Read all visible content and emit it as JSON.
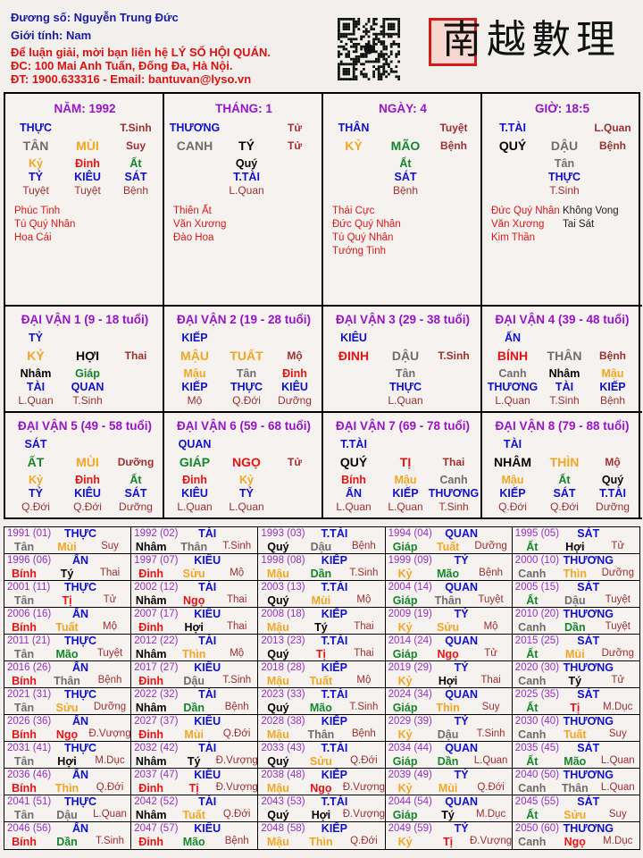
{
  "header": {
    "owner": "Đương số: Nguyễn Trung Đức",
    "gender": "Giới tính:   Nam",
    "contact_line": "Để luận giải, mời bạn liên hệ LÝ SỐ HỘI QUÁN.",
    "address": "ĐC: 100 Mai Anh Tuấn, Đống Đa, Hà Nội.",
    "phone_email": "ĐT: 1900.633316 - Email: bantuvan@lyso.vn",
    "logo_text": "南越數理",
    "qr_icon": "qr-code-icon"
  },
  "colors": {
    "title": "#9a14c8",
    "god": "#1010d0",
    "phase": "#a03030",
    "star": "#e01818",
    "elements": {
      "canh": "#6e6e6e",
      "tân": "#6e6e6e",
      "thân": "#6e6e6e",
      "dậu": "#6e6e6e",
      "giáp": "#15862a",
      "ất": "#15862a",
      "dần": "#15862a",
      "mão": "#15862a",
      "nhâm": "#000000",
      "quý": "#000000",
      "tý": "#000000",
      "hợi": "#000000",
      "bính": "#ee1111",
      "đinh": "#ee1111",
      "tị": "#ee1111",
      "ngọ": "#ee1111",
      "mậu": "#f5a623",
      "kỷ": "#f5a623",
      "thìn": "#f5a623",
      "tuất": "#f5a623",
      "sửu": "#f5a623",
      "mùi": "#f5a623"
    }
  },
  "pillars": [
    {
      "title": "NĂM: 1992",
      "god": "THỰC",
      "top_phase": "T.Sinh",
      "stem": "TÂN",
      "branch": "MÙI",
      "phase": "Suy",
      "hidden": [
        {
          "s": "Kỷ",
          "g": "TỶ",
          "p": "Tuyệt"
        },
        {
          "s": "Đinh",
          "g": "KIÊU",
          "p": "Tuyệt"
        },
        {
          "s": "Ất",
          "g": "SÁT",
          "p": "Bệnh"
        }
      ],
      "stars": [
        "Phúc Tinh",
        "Tú Quý Nhân",
        "Hoa Cái"
      ],
      "stars2": []
    },
    {
      "title": "THÁNG: 1",
      "god": "THƯƠNG",
      "top_phase": "Tử",
      "stem": "CANH",
      "branch": "TÝ",
      "phase": "Tử",
      "hidden": [
        {
          "s": "Quý",
          "g": "T.TÀI",
          "p": "L.Quan"
        }
      ],
      "stars": [
        "Thiên Ất",
        "Văn Xương",
        "Đào Hoa"
      ],
      "stars2": []
    },
    {
      "title": "NGÀY: 4",
      "god": "THÂN",
      "top_phase": "Tuyệt",
      "stem": "KỶ",
      "branch": "MÃO",
      "phase": "Bệnh",
      "hidden": [
        {
          "s": "Ất",
          "g": "SÁT",
          "p": "Bệnh"
        }
      ],
      "stars": [
        "Thái Cực",
        "Đức Quý Nhân",
        "Tú Quý Nhân",
        "Tướng Tinh"
      ],
      "stars2": []
    },
    {
      "title": "GIỜ: 18:5",
      "god": "T.TÀI",
      "top_phase": "L.Quan",
      "stem": "QUÝ",
      "branch": "DẬU",
      "phase": "Bệnh",
      "hidden": [
        {
          "s": "Tân",
          "g": "THỰC",
          "p": "T.Sinh"
        }
      ],
      "stars": [
        "Đức Quý Nhân",
        "Văn Xương",
        "Kim Thần"
      ],
      "stars2": [
        "Không Vong",
        "Tai Sát"
      ]
    }
  ],
  "dai_van": [
    {
      "title": "ĐẠI VẬN 1 (9 - 18 tuổi)",
      "god": "TỶ",
      "stem": "KỶ",
      "branch": "HỢI",
      "phase": "Thai",
      "hidden": [
        {
          "s": "Nhâm",
          "g": "TÀI",
          "p": "L.Quan"
        },
        {
          "s": "Giáp",
          "g": "QUAN",
          "p": "T.Sinh"
        }
      ]
    },
    {
      "title": "ĐẠI VẬN 2 (19 - 28 tuổi)",
      "god": "KIẾP",
      "stem": "MẬU",
      "branch": "TUẤT",
      "phase": "Mộ",
      "hidden": [
        {
          "s": "Mậu",
          "g": "KIẾP",
          "p": "Mộ"
        },
        {
          "s": "Tân",
          "g": "THỰC",
          "p": "Q.Đới"
        },
        {
          "s": "Đinh",
          "g": "KIÊU",
          "p": "Dưỡng"
        }
      ]
    },
    {
      "title": "ĐẠI VẬN 3 (29 - 38 tuổi)",
      "god": "KIÊU",
      "stem": "ĐINH",
      "branch": "DẬU",
      "phase": "T.Sinh",
      "hidden": [
        {
          "s": "Tân",
          "g": "THỰC",
          "p": "L.Quan"
        }
      ]
    },
    {
      "title": "ĐẠI VẬN 4 (39 - 48 tuổi)",
      "god": "ẤN",
      "stem": "BÍNH",
      "branch": "THÂN",
      "phase": "Bệnh",
      "hidden": [
        {
          "s": "Canh",
          "g": "THƯƠNG",
          "p": "L.Quan"
        },
        {
          "s": "Nhâm",
          "g": "TÀI",
          "p": "T.Sinh"
        },
        {
          "s": "Mậu",
          "g": "KIẾP",
          "p": "Bệnh"
        }
      ]
    },
    {
      "title": "ĐẠI VẬN 5 (49 - 58 tuổi)",
      "god": "SÁT",
      "stem": "ẤT",
      "branch": "MÙI",
      "phase": "Dưỡng",
      "hidden": [
        {
          "s": "Kỷ",
          "g": "TỶ",
          "p": "Q.Đới"
        },
        {
          "s": "Đinh",
          "g": "KIÊU",
          "p": "Q.Đới"
        },
        {
          "s": "Ất",
          "g": "SÁT",
          "p": "Dưỡng"
        }
      ]
    },
    {
      "title": "ĐẠI VẬN 6 (59 - 68 tuổi)",
      "god": "QUAN",
      "stem": "GIÁP",
      "branch": "NGỌ",
      "phase": "Tử",
      "hidden": [
        {
          "s": "Đinh",
          "g": "KIÊU",
          "p": "L.Quan"
        },
        {
          "s": "Kỷ",
          "g": "TỶ",
          "p": "L.Quan"
        }
      ]
    },
    {
      "title": "ĐẠI VẬN 7 (69 - 78 tuổi)",
      "god": "T.TÀI",
      "stem": "QUÝ",
      "branch": "TỊ",
      "phase": "Thai",
      "hidden": [
        {
          "s": "Bính",
          "g": "ẤN",
          "p": "L.Quan"
        },
        {
          "s": "Mậu",
          "g": "KIẾP",
          "p": "L.Quan"
        },
        {
          "s": "Canh",
          "g": "THƯƠNG",
          "p": "T.Sinh"
        }
      ]
    },
    {
      "title": "ĐẠI VẬN 8 (79 - 88 tuổi)",
      "god": "TÀI",
      "stem": "NHÂM",
      "branch": "THÌN",
      "phase": "Mộ",
      "hidden": [
        {
          "s": "Mậu",
          "g": "KIẾP",
          "p": "Q.Đới"
        },
        {
          "s": "Ất",
          "g": "SÁT",
          "p": "Q.Đới"
        },
        {
          "s": "Quý",
          "g": "T.TÀI",
          "p": "Dưỡng"
        }
      ]
    }
  ],
  "years": [
    [
      "1991 (01)",
      "THỰC",
      "Tân",
      "Mùi",
      "Suy"
    ],
    [
      "1992 (02)",
      "TÀI",
      "Nhâm",
      "Thân",
      "T.Sinh"
    ],
    [
      "1993 (03)",
      "T.TÀI",
      "Quý",
      "Dậu",
      "Bệnh"
    ],
    [
      "1994 (04)",
      "QUAN",
      "Giáp",
      "Tuất",
      "Dưỡng"
    ],
    [
      "1995 (05)",
      "SÁT",
      "Ất",
      "Hợi",
      "Tử"
    ],
    [
      "1996 (06)",
      "ẤN",
      "Bính",
      "Tý",
      "Thai"
    ],
    [
      "1997 (07)",
      "KIÊU",
      "Đinh",
      "Sửu",
      "Mộ"
    ],
    [
      "1998 (08)",
      "KIẾP",
      "Mậu",
      "Dần",
      "T.Sinh"
    ],
    [
      "1999 (09)",
      "TỶ",
      "Kỷ",
      "Mão",
      "Bệnh"
    ],
    [
      "2000 (10)",
      "THƯƠNG",
      "Canh",
      "Thìn",
      "Dưỡng"
    ],
    [
      "2001 (11)",
      "THỰC",
      "Tân",
      "Tị",
      "Tử"
    ],
    [
      "2002 (12)",
      "TÀI",
      "Nhâm",
      "Ngọ",
      "Thai"
    ],
    [
      "2003 (13)",
      "T.TÀI",
      "Quý",
      "Mùi",
      "Mộ"
    ],
    [
      "2004 (14)",
      "QUAN",
      "Giáp",
      "Thân",
      "Tuyệt"
    ],
    [
      "2005 (15)",
      "SÁT",
      "Ất",
      "Dậu",
      "Tuyệt"
    ],
    [
      "2006 (16)",
      "ẤN",
      "Bính",
      "Tuất",
      "Mộ"
    ],
    [
      "2007 (17)",
      "KIÊU",
      "Đinh",
      "Hợi",
      "Thai"
    ],
    [
      "2008 (18)",
      "KIẾP",
      "Mậu",
      "Tý",
      "Thai"
    ],
    [
      "2009 (19)",
      "TỶ",
      "Kỷ",
      "Sửu",
      "Mộ"
    ],
    [
      "2010 (20)",
      "THƯƠNG",
      "Canh",
      "Dần",
      "Tuyệt"
    ],
    [
      "2011 (21)",
      "THỰC",
      "Tân",
      "Mão",
      "Tuyệt"
    ],
    [
      "2012 (22)",
      "TÀI",
      "Nhâm",
      "Thìn",
      "Mộ"
    ],
    [
      "2013 (23)",
      "T.TÀI",
      "Quý",
      "Tị",
      "Thai"
    ],
    [
      "2014 (24)",
      "QUAN",
      "Giáp",
      "Ngọ",
      "Tử"
    ],
    [
      "2015 (25)",
      "SÁT",
      "Ất",
      "Mùi",
      "Dưỡng"
    ],
    [
      "2016 (26)",
      "ẤN",
      "Bính",
      "Thân",
      "Bệnh"
    ],
    [
      "2017 (27)",
      "KIÊU",
      "Đinh",
      "Dậu",
      "T.Sinh"
    ],
    [
      "2018 (28)",
      "KIẾP",
      "Mậu",
      "Tuất",
      "Mộ"
    ],
    [
      "2019 (29)",
      "TỶ",
      "Kỷ",
      "Hợi",
      "Thai"
    ],
    [
      "2020 (30)",
      "THƯƠNG",
      "Canh",
      "Tý",
      "Tử"
    ],
    [
      "2021 (31)",
      "THỰC",
      "Tân",
      "Sửu",
      "Dưỡng"
    ],
    [
      "2022 (32)",
      "TÀI",
      "Nhâm",
      "Dần",
      "Bệnh"
    ],
    [
      "2023 (33)",
      "T.TÀI",
      "Quý",
      "Mão",
      "T.Sinh"
    ],
    [
      "2024 (34)",
      "QUAN",
      "Giáp",
      "Thìn",
      "Suy"
    ],
    [
      "2025 (35)",
      "SÁT",
      "Ất",
      "Tị",
      "M.Dục"
    ],
    [
      "2026 (36)",
      "ẤN",
      "Bính",
      "Ngọ",
      "Đ.Vượng"
    ],
    [
      "2027 (37)",
      "KIÊU",
      "Đinh",
      "Mùi",
      "Q.Đới"
    ],
    [
      "2028 (38)",
      "KIẾP",
      "Mậu",
      "Thân",
      "Bệnh"
    ],
    [
      "2029 (39)",
      "TỶ",
      "Kỷ",
      "Dậu",
      "T.Sinh"
    ],
    [
      "2030 (40)",
      "THƯƠNG",
      "Canh",
      "Tuất",
      "Suy"
    ],
    [
      "2031 (41)",
      "THỰC",
      "Tân",
      "Hợi",
      "M.Dục"
    ],
    [
      "2032 (42)",
      "TÀI",
      "Nhâm",
      "Tý",
      "Đ.Vượng"
    ],
    [
      "2033 (43)",
      "T.TÀI",
      "Quý",
      "Sửu",
      "Q.Đới"
    ],
    [
      "2034 (44)",
      "QUAN",
      "Giáp",
      "Dần",
      "L.Quan"
    ],
    [
      "2035 (45)",
      "SÁT",
      "Ất",
      "Mão",
      "L.Quan"
    ],
    [
      "2036 (46)",
      "ẤN",
      "Bính",
      "Thìn",
      "Q.Đới"
    ],
    [
      "2037 (47)",
      "KIÊU",
      "Đinh",
      "Tị",
      "Đ.Vượng"
    ],
    [
      "2038 (48)",
      "KIẾP",
      "Mậu",
      "Ngọ",
      "Đ.Vượng"
    ],
    [
      "2039 (49)",
      "TỶ",
      "Kỷ",
      "Mùi",
      "Q.Đới"
    ],
    [
      "2040 (50)",
      "THƯƠNG",
      "Canh",
      "Thân",
      "L.Quan"
    ],
    [
      "2041 (51)",
      "THỰC",
      "Tân",
      "Dậu",
      "L.Quan"
    ],
    [
      "2042 (52)",
      "TÀI",
      "Nhâm",
      "Tuất",
      "Q.Đới"
    ],
    [
      "2043 (53)",
      "T.TÀI",
      "Quý",
      "Hợi",
      "Đ.Vượng"
    ],
    [
      "2044 (54)",
      "QUAN",
      "Giáp",
      "Tý",
      "M.Dục"
    ],
    [
      "2045 (55)",
      "SÁT",
      "Ất",
      "Sửu",
      "Suy"
    ],
    [
      "2046 (56)",
      "ẤN",
      "Bính",
      "Dần",
      "T.Sinh"
    ],
    [
      "2047 (57)",
      "KIÊU",
      "Đinh",
      "Mão",
      "Bệnh"
    ],
    [
      "2048 (58)",
      "KIẾP",
      "Mậu",
      "Thìn",
      "Q.Đới"
    ],
    [
      "2049 (59)",
      "TỶ",
      "Kỷ",
      "Tị",
      "Đ.Vượng"
    ],
    [
      "2050 (60)",
      "THƯƠNG",
      "Canh",
      "Ngọ",
      "M.Dục"
    ]
  ]
}
